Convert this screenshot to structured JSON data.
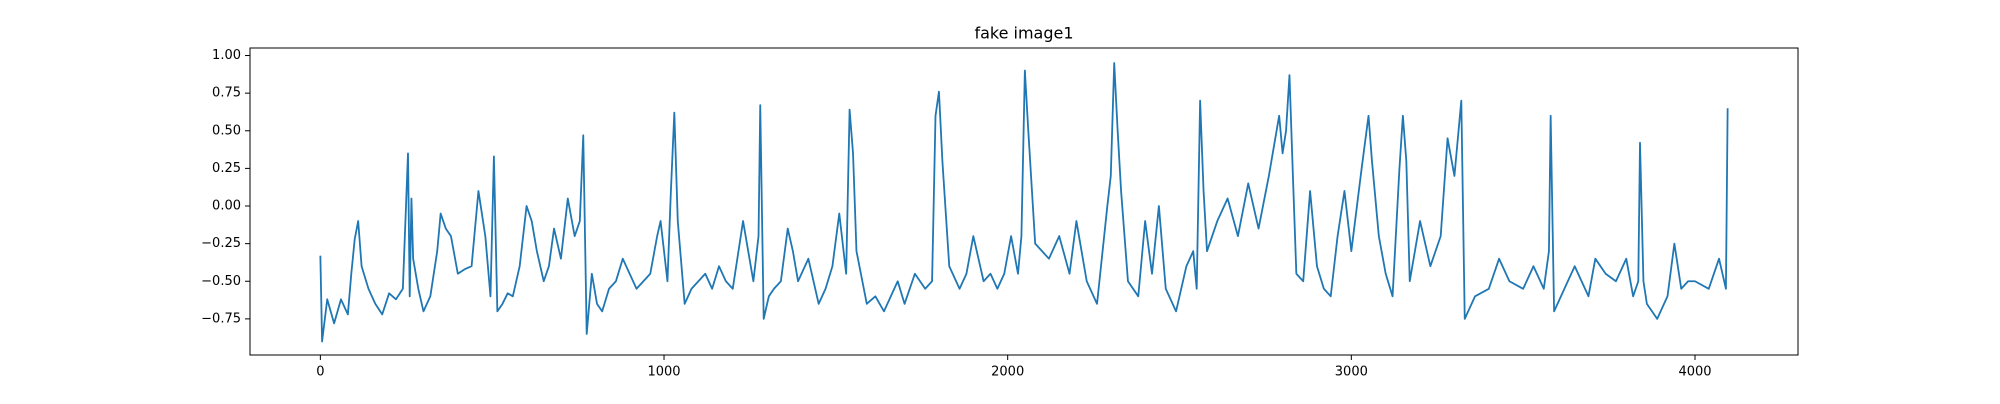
{
  "chart_data": {
    "type": "line",
    "title": "fake image1",
    "color": "#1f77b4",
    "x": [
      0,
      5,
      20,
      40,
      60,
      80,
      90,
      100,
      110,
      120,
      140,
      160,
      180,
      200,
      220,
      240,
      255,
      260,
      265,
      270,
      285,
      300,
      320,
      340,
      350,
      365,
      380,
      400,
      420,
      440,
      460,
      480,
      495,
      505,
      515,
      530,
      545,
      560,
      580,
      600,
      615,
      630,
      650,
      665,
      680,
      700,
      720,
      740,
      755,
      765,
      775,
      790,
      805,
      820,
      840,
      860,
      880,
      900,
      920,
      940,
      960,
      980,
      990,
      1010,
      1020,
      1030,
      1040,
      1060,
      1080,
      1100,
      1120,
      1140,
      1160,
      1180,
      1200,
      1230,
      1260,
      1275,
      1280,
      1290,
      1305,
      1320,
      1340,
      1360,
      1375,
      1390,
      1420,
      1450,
      1470,
      1490,
      1510,
      1530,
      1540,
      1550,
      1560,
      1590,
      1615,
      1640,
      1660,
      1680,
      1700,
      1730,
      1760,
      1780,
      1790,
      1800,
      1810,
      1830,
      1860,
      1880,
      1900,
      1915,
      1930,
      1950,
      1970,
      1990,
      2010,
      2030,
      2040,
      2050,
      2060,
      2080,
      2100,
      2120,
      2150,
      2180,
      2200,
      2230,
      2260,
      2290,
      2300,
      2310,
      2320,
      2330,
      2350,
      2380,
      2400,
      2420,
      2440,
      2460,
      2490,
      2520,
      2540,
      2550,
      2560,
      2570,
      2580,
      2610,
      2640,
      2670,
      2700,
      2730,
      2760,
      2790,
      2800,
      2810,
      2820,
      2830,
      2840,
      2860,
      2880,
      2900,
      2920,
      2940,
      2960,
      2980,
      3000,
      3030,
      3050,
      3060,
      3080,
      3100,
      3120,
      3140,
      3150,
      3160,
      3170,
      3200,
      3230,
      3260,
      3280,
      3300,
      3320,
      3330,
      3360,
      3400,
      3430,
      3460,
      3500,
      3530,
      3560,
      3575,
      3580,
      3590,
      3620,
      3650,
      3690,
      3710,
      3740,
      3770,
      3800,
      3820,
      3835,
      3840,
      3850,
      3860,
      3890,
      3920,
      3940,
      3960,
      3980,
      4000,
      4040,
      4070,
      4090,
      4095
    ],
    "values": [
      -0.33,
      -0.9,
      -0.62,
      -0.78,
      -0.62,
      -0.72,
      -0.45,
      -0.22,
      -0.1,
      -0.4,
      -0.55,
      -0.65,
      -0.72,
      -0.58,
      -0.62,
      -0.55,
      0.35,
      -0.6,
      0.05,
      -0.35,
      -0.55,
      -0.7,
      -0.6,
      -0.3,
      -0.05,
      -0.15,
      -0.2,
      -0.45,
      -0.42,
      -0.4,
      0.1,
      -0.2,
      -0.6,
      0.33,
      -0.7,
      -0.65,
      -0.58,
      -0.6,
      -0.4,
      0.0,
      -0.1,
      -0.3,
      -0.5,
      -0.4,
      -0.15,
      -0.35,
      0.05,
      -0.2,
      -0.1,
      0.47,
      -0.85,
      -0.45,
      -0.65,
      -0.7,
      -0.55,
      -0.5,
      -0.35,
      -0.45,
      -0.55,
      -0.5,
      -0.45,
      -0.2,
      -0.1,
      -0.5,
      0.1,
      0.62,
      -0.1,
      -0.65,
      -0.55,
      -0.5,
      -0.45,
      -0.55,
      -0.4,
      -0.5,
      -0.55,
      -0.1,
      -0.5,
      -0.2,
      0.67,
      -0.75,
      -0.6,
      -0.55,
      -0.5,
      -0.15,
      -0.3,
      -0.5,
      -0.35,
      -0.65,
      -0.55,
      -0.4,
      -0.05,
      -0.45,
      0.64,
      0.35,
      -0.3,
      -0.65,
      -0.6,
      -0.7,
      -0.6,
      -0.5,
      -0.65,
      -0.45,
      -0.55,
      -0.5,
      0.6,
      0.76,
      0.3,
      -0.4,
      -0.55,
      -0.45,
      -0.2,
      -0.35,
      -0.5,
      -0.45,
      -0.55,
      -0.45,
      -0.2,
      -0.45,
      -0.2,
      0.9,
      0.5,
      -0.25,
      -0.3,
      -0.35,
      -0.2,
      -0.45,
      -0.1,
      -0.5,
      -0.65,
      0.0,
      0.2,
      0.95,
      0.5,
      0.1,
      -0.5,
      -0.6,
      -0.1,
      -0.45,
      0.0,
      -0.55,
      -0.7,
      -0.4,
      -0.3,
      -0.55,
      0.7,
      0.1,
      -0.3,
      -0.1,
      0.05,
      -0.2,
      0.15,
      -0.15,
      0.2,
      0.6,
      0.35,
      0.5,
      0.87,
      0.2,
      -0.45,
      -0.5,
      0.1,
      -0.4,
      -0.55,
      -0.6,
      -0.2,
      0.1,
      -0.3,
      0.25,
      0.6,
      0.3,
      -0.2,
      -0.45,
      -0.6,
      0.25,
      0.6,
      0.3,
      -0.5,
      -0.1,
      -0.4,
      -0.2,
      0.45,
      0.2,
      0.7,
      -0.75,
      -0.6,
      -0.55,
      -0.35,
      -0.5,
      -0.55,
      -0.4,
      -0.55,
      -0.3,
      0.6,
      -0.7,
      -0.55,
      -0.4,
      -0.6,
      -0.35,
      -0.45,
      -0.5,
      -0.35,
      -0.6,
      -0.5,
      0.42,
      -0.5,
      -0.65,
      -0.75,
      -0.6,
      -0.25,
      -0.55,
      -0.5,
      -0.5,
      -0.55,
      -0.35,
      -0.55,
      0.65
    ],
    "xlim": [
      -204.75,
      4299.75
    ],
    "ylim": [
      -0.99,
      1.05
    ],
    "xticks": [
      0,
      1000,
      2000,
      3000,
      4000
    ],
    "yticks": [
      {
        "value": -0.75,
        "label": "−0.75"
      },
      {
        "value": -0.5,
        "label": "−0.50"
      },
      {
        "value": -0.25,
        "label": "−0.25"
      },
      {
        "value": 0,
        "label": "0.00"
      },
      0.25,
      {
        "value": 0.5,
        "label": "0.50"
      },
      0.75,
      {
        "value": 1,
        "label": "1.00"
      }
    ]
  }
}
